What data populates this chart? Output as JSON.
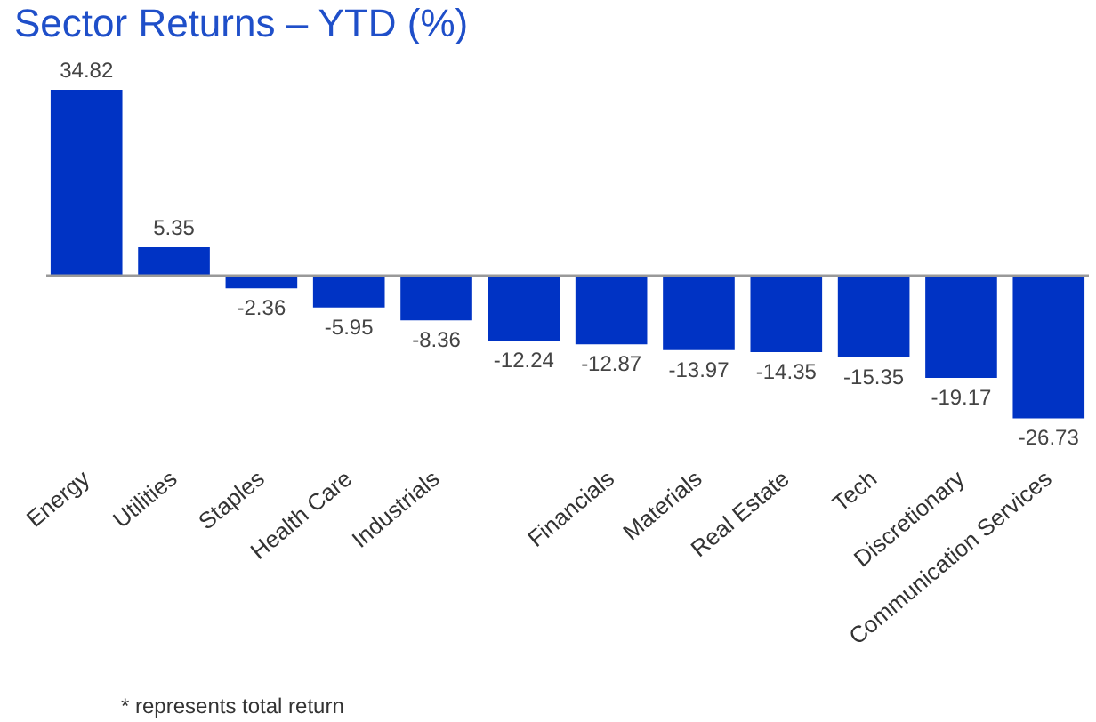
{
  "chart_data": {
    "type": "bar",
    "title": "Sector Returns – YTD (%)",
    "categories": [
      "Energy",
      "Utilities",
      "Staples",
      "Health Care",
      "Industrials",
      null,
      "Financials",
      "Materials",
      "Real Estate",
      "Tech",
      "Discretionary",
      "Communication Services"
    ],
    "values": [
      34.82,
      5.35,
      -2.36,
      -5.95,
      -8.36,
      -12.24,
      -12.87,
      -13.97,
      -14.35,
      -15.35,
      -19.17,
      -26.73
    ],
    "color": "#0033c4",
    "data_labels": true,
    "annotations": [
      "* represents total return"
    ]
  }
}
